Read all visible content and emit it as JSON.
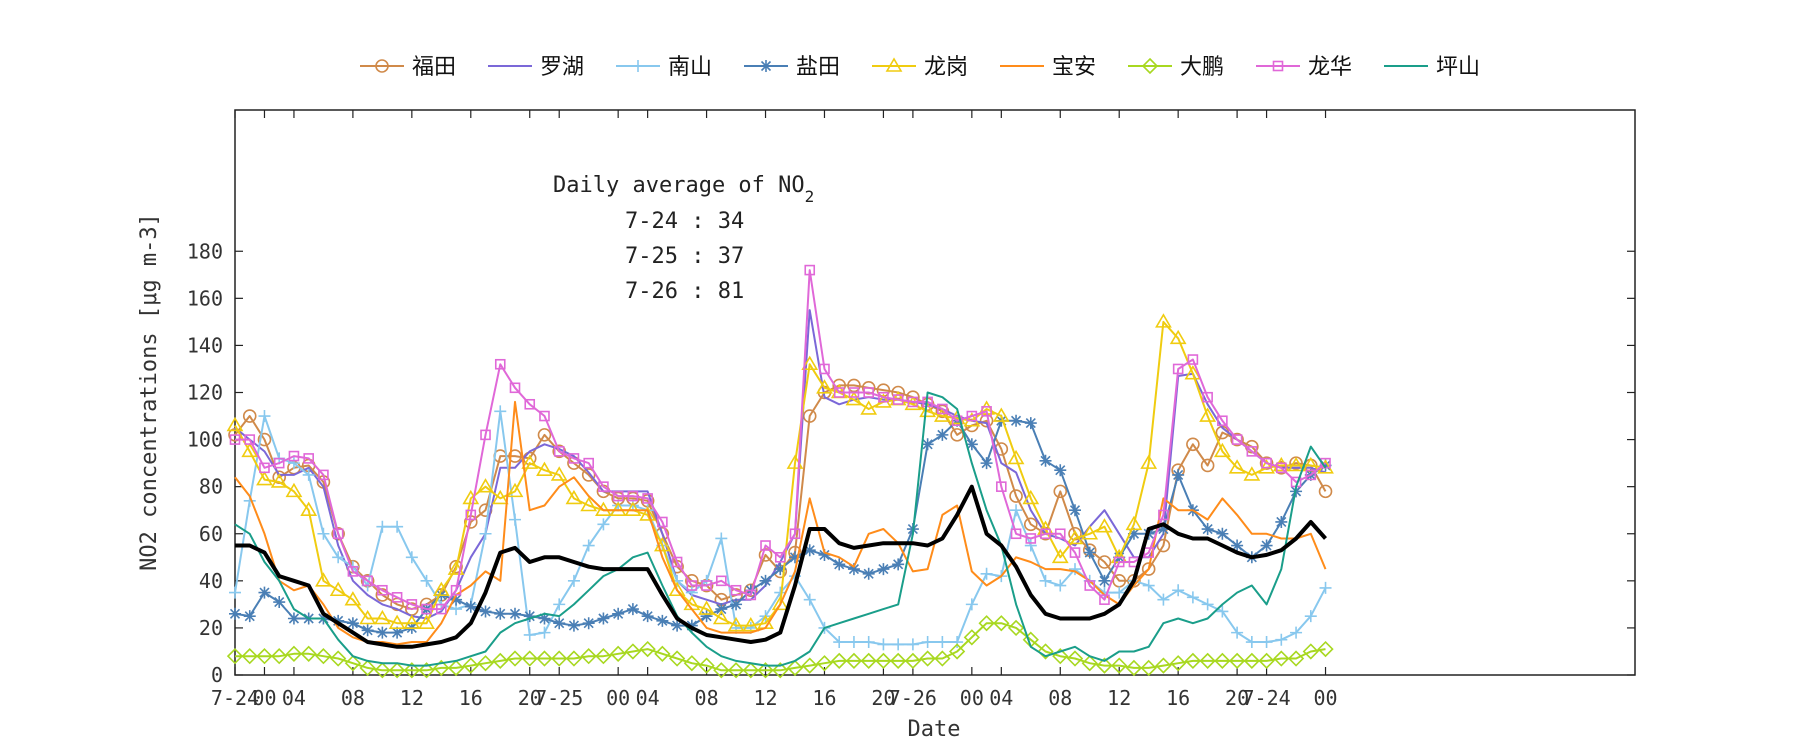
{
  "chart_data": {
    "type": "line",
    "xlabel": "Date",
    "ylabel": "NO2 concentrations [μg m-3]",
    "ylim": [
      0,
      240
    ],
    "yticks": [
      0,
      20,
      40,
      60,
      80,
      100,
      120,
      140,
      160,
      180
    ],
    "xlim": [
      0,
      95
    ],
    "xticks": [
      {
        "x": 0,
        "label": "7-24"
      },
      {
        "x": 2,
        "label": "00"
      },
      {
        "x": 4,
        "label": "04"
      },
      {
        "x": 8,
        "label": "08"
      },
      {
        "x": 12,
        "label": "12"
      },
      {
        "x": 16,
        "label": "16"
      },
      {
        "x": 20,
        "label": "20"
      },
      {
        "x": 22,
        "label": "7-25"
      },
      {
        "x": 26,
        "label": "00"
      },
      {
        "x": 28,
        "label": "04"
      },
      {
        "x": 32,
        "label": "08"
      },
      {
        "x": 36,
        "label": "12"
      },
      {
        "x": 40,
        "label": "16"
      },
      {
        "x": 44,
        "label": "20"
      },
      {
        "x": 46,
        "label": "7-26"
      },
      {
        "x": 50,
        "label": "00"
      },
      {
        "x": 52,
        "label": "04"
      },
      {
        "x": 56,
        "label": "08"
      },
      {
        "x": 60,
        "label": "12"
      },
      {
        "x": 64,
        "label": "16"
      },
      {
        "x": 68,
        "label": "20"
      },
      {
        "x": 70,
        "label": "7-24"
      },
      {
        "x": 74,
        "label": "00"
      }
    ],
    "annotation": {
      "title": "Daily average of NO",
      "title_sub": "2",
      "lines": [
        "7-24 : 34",
        "7-25 : 37",
        "7-26 : 81"
      ]
    },
    "series": [
      {
        "name": "福田",
        "color": "#d08a4a",
        "marker": "circle",
        "width": 2,
        "values": [
          102,
          110,
          100,
          84,
          88,
          89,
          82,
          60,
          46,
          40,
          34,
          30,
          28,
          30,
          34,
          46,
          65,
          70,
          93,
          93,
          92,
          102,
          95,
          90,
          85,
          78,
          75,
          75,
          74,
          60,
          46,
          40,
          38,
          32,
          34,
          36,
          51,
          44,
          52,
          110,
          120,
          123,
          123,
          122,
          121,
          120,
          118,
          115,
          112,
          102,
          106,
          108,
          96,
          76,
          64,
          60,
          78,
          60,
          53,
          48,
          40,
          40,
          45,
          55,
          87,
          98,
          89,
          103,
          100,
          97,
          90,
          88,
          90,
          89,
          78
        ]
      },
      {
        "name": "罗湖",
        "color": "#7b68d8",
        "marker": "none",
        "width": 2,
        "values": [
          105,
          100,
          95,
          85,
          85,
          88,
          80,
          55,
          40,
          34,
          30,
          28,
          25,
          24,
          27,
          36,
          50,
          60,
          88,
          88,
          95,
          98,
          96,
          93,
          86,
          78,
          78,
          78,
          78,
          60,
          40,
          34,
          32,
          30,
          32,
          32,
          38,
          48,
          60,
          155,
          118,
          115,
          117,
          118,
          117,
          117,
          116,
          115,
          113,
          110,
          108,
          107,
          90,
          86,
          70,
          60,
          58,
          55,
          63,
          70,
          60,
          50,
          50,
          60,
          127,
          128,
          115,
          105,
          100,
          95,
          90,
          88,
          88,
          88,
          86
        ]
      },
      {
        "name": "南山",
        "color": "#88c8ee",
        "marker": "plus",
        "width": 2,
        "values": [
          35,
          74,
          110,
          92,
          90,
          85,
          60,
          50,
          46,
          38,
          63,
          63,
          50,
          40,
          30,
          28,
          30,
          60,
          112,
          66,
          17,
          18,
          30,
          40,
          55,
          64,
          72,
          72,
          70,
          55,
          40,
          35,
          40,
          58,
          20,
          20,
          25,
          35,
          42,
          32,
          20,
          14,
          14,
          14,
          13,
          13,
          13,
          14,
          14,
          14,
          30,
          43,
          42,
          70,
          55,
          40,
          38,
          45,
          40,
          35,
          35,
          40,
          38,
          32,
          36,
          33,
          30,
          27,
          18,
          14,
          14,
          15,
          18,
          25,
          37
        ]
      },
      {
        "name": "盐田",
        "color": "#4a7fb5",
        "marker": "asterisk",
        "width": 2,
        "values": [
          26,
          25,
          35,
          31,
          24,
          24,
          24,
          23,
          22,
          19,
          18,
          18,
          20,
          28,
          34,
          32,
          29,
          27,
          26,
          26,
          25,
          24,
          22,
          21,
          22,
          24,
          26,
          28,
          25,
          23,
          21,
          21,
          25,
          28,
          30,
          36,
          40,
          45,
          50,
          53,
          51,
          47,
          45,
          43,
          45,
          47,
          62,
          98,
          102,
          108,
          98,
          90,
          108,
          108,
          107,
          91,
          87,
          70,
          52,
          40,
          50,
          60,
          60,
          62,
          85,
          70,
          62,
          60,
          55,
          50,
          55,
          65,
          78,
          85,
          89
        ]
      },
      {
        "name": "龙岗",
        "color": "#f0cc10",
        "marker": "triangle",
        "width": 2,
        "values": [
          106,
          95,
          83,
          82,
          78,
          70,
          40,
          36,
          32,
          24,
          24,
          22,
          22,
          22,
          36,
          45,
          75,
          80,
          75,
          78,
          90,
          87,
          85,
          75,
          72,
          70,
          70,
          70,
          68,
          55,
          36,
          30,
          28,
          24,
          21,
          21,
          22,
          30,
          90,
          132,
          122,
          120,
          117,
          113,
          116,
          117,
          115,
          112,
          110,
          109,
          108,
          113,
          110,
          92,
          75,
          62,
          50,
          58,
          60,
          63,
          50,
          64,
          90,
          150,
          143,
          128,
          110,
          95,
          88,
          85,
          88,
          89,
          89,
          89,
          88
        ]
      },
      {
        "name": "宝安",
        "color": "#ff8c1a",
        "marker": "none",
        "width": 2,
        "values": [
          84,
          76,
          60,
          40,
          36,
          38,
          30,
          20,
          16,
          14,
          14,
          13,
          14,
          14,
          22,
          34,
          38,
          44,
          40,
          116,
          70,
          72,
          80,
          84,
          76,
          70,
          70,
          70,
          70,
          50,
          36,
          28,
          20,
          18,
          18,
          18,
          20,
          30,
          44,
          75,
          52,
          50,
          46,
          60,
          62,
          56,
          44,
          45,
          68,
          72,
          44,
          38,
          42,
          50,
          48,
          45,
          45,
          44,
          40,
          34,
          30,
          38,
          45,
          75,
          70,
          70,
          66,
          75,
          68,
          60,
          60,
          58,
          58,
          60,
          45
        ]
      },
      {
        "name": "大鹏",
        "color": "#a8d820",
        "marker": "diamond",
        "width": 2,
        "values": [
          8,
          8,
          8,
          8,
          9,
          9,
          8,
          7,
          5,
          3,
          2,
          2,
          2,
          2,
          3,
          3,
          4,
          5,
          6,
          7,
          7,
          7,
          7,
          7,
          8,
          8,
          9,
          10,
          11,
          9,
          7,
          5,
          4,
          2,
          2,
          2,
          2,
          2,
          3,
          4,
          5,
          6,
          6,
          6,
          6,
          6,
          6,
          7,
          7,
          10,
          16,
          22,
          22,
          20,
          15,
          10,
          8,
          7,
          5,
          4,
          4,
          3,
          3,
          4,
          5,
          6,
          6,
          6,
          6,
          6,
          6,
          7,
          7,
          10,
          11
        ]
      },
      {
        "name": "龙华",
        "color": "#e068d8",
        "marker": "square",
        "width": 2,
        "values": [
          100,
          100,
          88,
          90,
          93,
          92,
          85,
          60,
          44,
          40,
          36,
          33,
          30,
          28,
          28,
          36,
          68,
          102,
          132,
          122,
          115,
          110,
          95,
          92,
          90,
          80,
          76,
          76,
          75,
          65,
          48,
          38,
          38,
          40,
          36,
          34,
          55,
          50,
          60,
          172,
          130,
          120,
          120,
          120,
          118,
          117,
          116,
          116,
          113,
          108,
          110,
          112,
          80,
          60,
          58,
          60,
          60,
          52,
          38,
          32,
          48,
          48,
          52,
          68,
          130,
          134,
          118,
          108,
          100,
          95,
          90,
          88,
          82,
          85,
          90
        ]
      },
      {
        "name": "坪山",
        "color": "#1a9e8a",
        "marker": "none",
        "width": 2,
        "values": [
          64,
          60,
          48,
          40,
          28,
          24,
          24,
          15,
          8,
          6,
          5,
          5,
          4,
          4,
          5,
          6,
          8,
          10,
          18,
          22,
          24,
          26,
          25,
          30,
          36,
          42,
          45,
          50,
          52,
          38,
          25,
          18,
          12,
          8,
          6,
          5,
          4,
          4,
          6,
          10,
          20,
          22,
          24,
          26,
          28,
          30,
          60,
          120,
          118,
          113,
          90,
          70,
          55,
          30,
          12,
          8,
          10,
          12,
          8,
          6,
          10,
          10,
          12,
          22,
          24,
          22,
          24,
          30,
          35,
          38,
          30,
          45,
          80,
          97,
          88
        ]
      },
      {
        "name": "average",
        "color": "#000000",
        "marker": "none",
        "width": 4,
        "legend": false,
        "values": [
          55,
          55,
          52,
          42,
          40,
          38,
          26,
          22,
          18,
          14,
          13,
          12,
          12,
          13,
          14,
          16,
          22,
          35,
          52,
          54,
          48,
          50,
          50,
          48,
          46,
          45,
          45,
          45,
          45,
          34,
          24,
          20,
          17,
          16,
          15,
          14,
          15,
          18,
          38,
          62,
          62,
          56,
          54,
          55,
          56,
          56,
          56,
          55,
          58,
          68,
          80,
          60,
          55,
          46,
          34,
          26,
          24,
          24,
          24,
          26,
          30,
          40,
          62,
          64,
          60,
          58,
          58,
          55,
          52,
          50,
          51,
          53,
          58,
          65,
          58
        ]
      }
    ]
  }
}
